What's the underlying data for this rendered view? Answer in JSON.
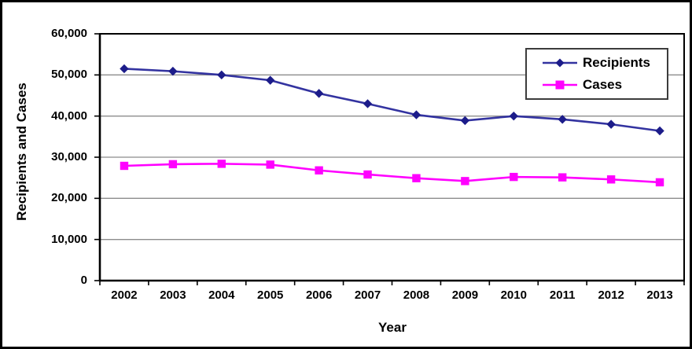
{
  "chart_data": {
    "type": "line",
    "title": "",
    "xlabel": "Year",
    "ylabel": "Recipients and Cases",
    "x": [
      2002,
      2003,
      2004,
      2005,
      2006,
      2007,
      2008,
      2009,
      2010,
      2011,
      2012,
      2013
    ],
    "x_tick_labels": [
      "2002",
      "2003",
      "2004",
      "2005",
      "2006",
      "2007",
      "2008",
      "2009",
      "2010",
      "2011",
      "2012",
      "2013"
    ],
    "y_tick_values": [
      0,
      10000,
      20000,
      30000,
      40000,
      50000,
      60000
    ],
    "y_tick_labels": [
      "0",
      "10,000",
      "20,000",
      "30,000",
      "40,000",
      "50,000",
      "60,000"
    ],
    "ylim": [
      0,
      60000
    ],
    "grid": "horizontal",
    "legend_position": "top-right-inside",
    "series": [
      {
        "name": "Recipients",
        "marker": "diamond",
        "color": "#3333A0",
        "marker_color": "#1C1C8A",
        "values": [
          51500,
          50900,
          50000,
          48700,
          45500,
          43000,
          40300,
          38900,
          40000,
          39200,
          38000,
          36400
        ]
      },
      {
        "name": "Cases",
        "marker": "square",
        "color": "#FF00FF",
        "marker_color": "#FF00FF",
        "values": [
          27900,
          28300,
          28400,
          28200,
          26800,
          25800,
          24900,
          24200,
          25200,
          25100,
          24600,
          23900
        ]
      }
    ]
  },
  "colors": {
    "grid": "#8C8C8C",
    "axis": "#000000",
    "plot_border": "#000000",
    "figure_border": "#000000",
    "background": "#FFFFFF",
    "text": "#000000"
  }
}
